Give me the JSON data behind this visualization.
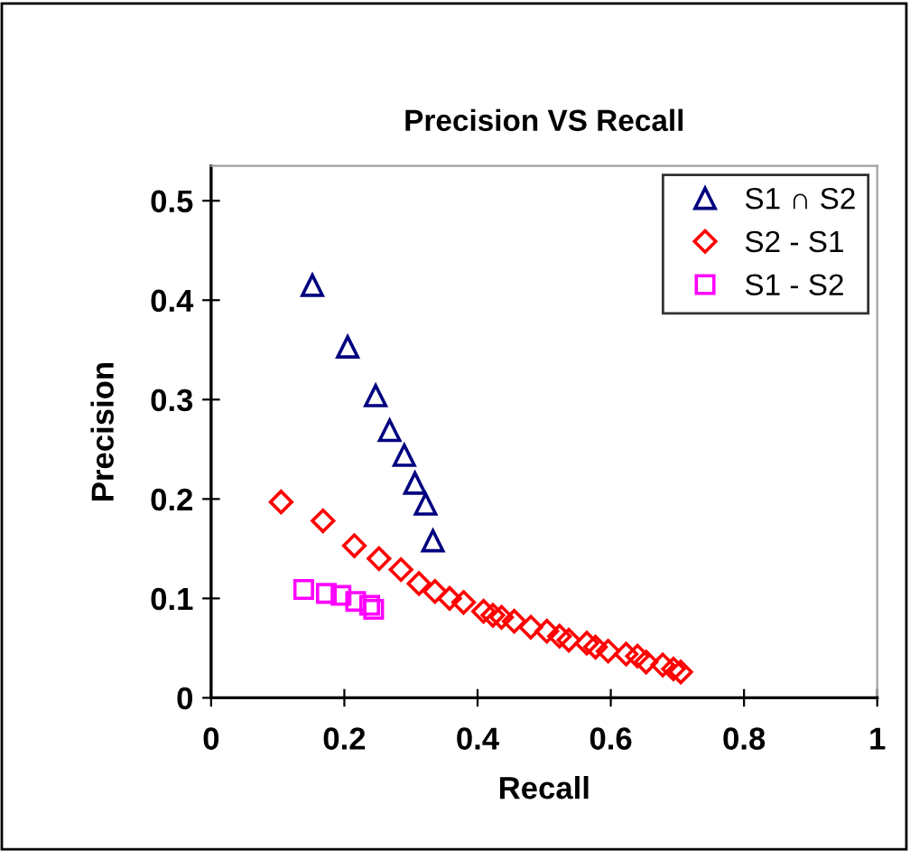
{
  "chart_data": {
    "type": "scatter",
    "title": "Precision VS Recall",
    "xlabel": "Recall",
    "ylabel": "Precision",
    "xlim": [
      0,
      1
    ],
    "xticks": [
      0,
      0.2,
      0.4,
      0.6,
      0.8,
      1
    ],
    "ylim": [
      0,
      0.535
    ],
    "yticks": [
      0,
      0.1,
      0.2,
      0.3,
      0.4,
      0.5
    ],
    "grid": false,
    "legend": "top right",
    "series": [
      {
        "name": "S1 ∩ S2",
        "color": "#000080",
        "marker": "triangle",
        "x": [
          0.152,
          0.205,
          0.247,
          0.268,
          0.29,
          0.306,
          0.322,
          0.333
        ],
        "values": [
          0.415,
          0.353,
          0.304,
          0.269,
          0.244,
          0.216,
          0.195,
          0.158
        ]
      },
      {
        "name": "S2 - S1",
        "color": "#ff0000",
        "marker": "diamond",
        "x": [
          0.105,
          0.168,
          0.215,
          0.252,
          0.285,
          0.312,
          0.336,
          0.358,
          0.379,
          0.409,
          0.423,
          0.436,
          0.455,
          0.48,
          0.504,
          0.523,
          0.537,
          0.564,
          0.577,
          0.596,
          0.623,
          0.64,
          0.653,
          0.678,
          0.694,
          0.705
        ],
        "values": [
          0.197,
          0.178,
          0.153,
          0.14,
          0.129,
          0.115,
          0.107,
          0.1,
          0.096,
          0.087,
          0.083,
          0.081,
          0.077,
          0.071,
          0.067,
          0.062,
          0.058,
          0.055,
          0.051,
          0.047,
          0.044,
          0.042,
          0.036,
          0.033,
          0.029,
          0.026
        ]
      },
      {
        "name": "S1 - S2",
        "color": "#ff00ff",
        "marker": "square",
        "x": [
          0.139,
          0.173,
          0.195,
          0.217,
          0.238,
          0.244
        ],
        "values": [
          0.109,
          0.105,
          0.103,
          0.097,
          0.093,
          0.089
        ]
      }
    ]
  }
}
